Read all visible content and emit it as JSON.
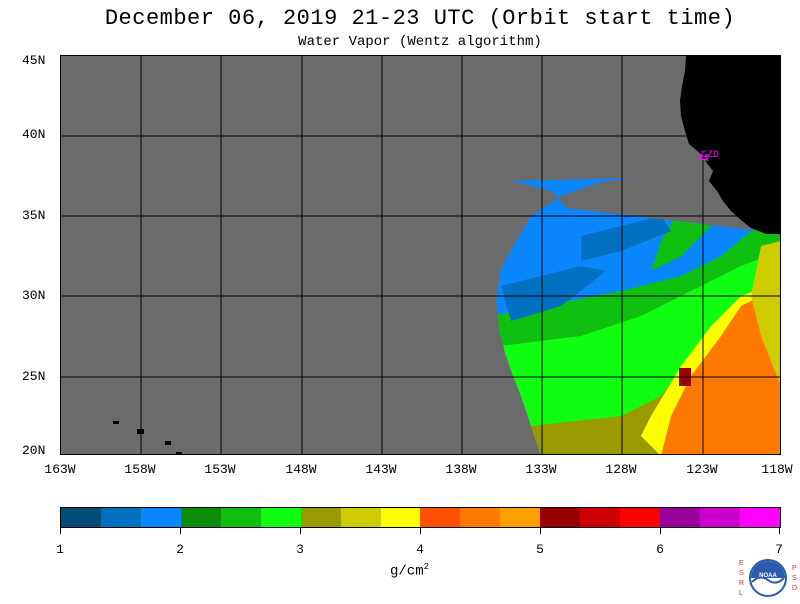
{
  "title": "December 06, 2019  21-23 UTC  (Orbit start time)",
  "subtitle": "Water Vapor (Wentz algorithm)",
  "lat_labels": [
    "45N",
    "40N",
    "35N",
    "30N",
    "25N",
    "20N"
  ],
  "lon_labels": [
    "163W",
    "158W",
    "153W",
    "148W",
    "143W",
    "138W",
    "133W",
    "128W",
    "123W",
    "118W"
  ],
  "station_label": "CZD",
  "colorbar": {
    "labels": [
      "1",
      "2",
      "3",
      "4",
      "5",
      "6",
      "7"
    ],
    "units_text": "g/cm",
    "units_sup": "2",
    "colors": [
      "#004e78",
      "#0070c0",
      "#0a86ff",
      "#0b8c0b",
      "#10c010",
      "#10ff10",
      "#999900",
      "#cccc00",
      "#ffff00",
      "#ff5000",
      "#ff7800",
      "#ffa000",
      "#990000",
      "#cc0000",
      "#ff0000",
      "#990099",
      "#cc00cc",
      "#ff00ff"
    ]
  },
  "map_colors": {
    "no_data": "#6b6b6b",
    "land": "#000000",
    "grid": "#000000",
    "station": "#ff00ff"
  },
  "logo": {
    "left_letters": "ESRL",
    "right_letters": "PSD",
    "center_text": "NOAA"
  }
}
